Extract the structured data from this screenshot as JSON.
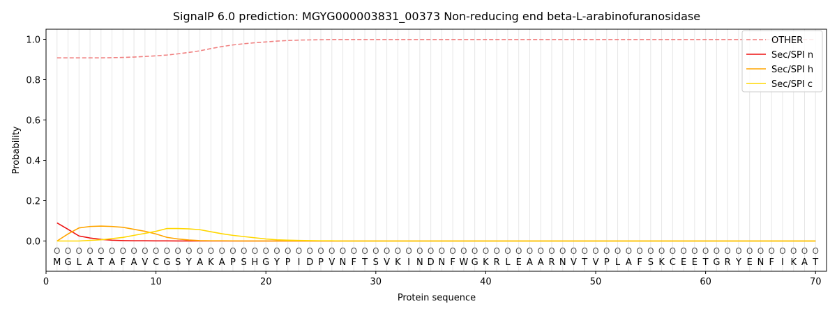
{
  "chart_data": {
    "type": "line",
    "title": "SignalP 6.0 prediction: MGYG000003831_00373 Non-reducing end beta-L-arabinofuranosidase",
    "xlabel": "Protein sequence",
    "ylabel": "Probability",
    "xlim": [
      0,
      71
    ],
    "ylim": [
      -0.15,
      1.05
    ],
    "xticks": [
      0,
      10,
      20,
      30,
      40,
      50,
      60,
      70
    ],
    "yticks": [
      0.0,
      0.2,
      0.4,
      0.6,
      0.8,
      1.0
    ],
    "ytick_labels": [
      "0.0",
      "0.2",
      "0.4",
      "0.6",
      "0.8",
      "1.0"
    ],
    "grid": "vertical lines at each residue position",
    "legend_position": "top-right",
    "sequence": [
      "M",
      "G",
      "L",
      "A",
      "T",
      "A",
      "F",
      "A",
      "V",
      "C",
      "G",
      "S",
      "Y",
      "A",
      "K",
      "A",
      "P",
      "S",
      "H",
      "G",
      "Y",
      "P",
      "I",
      "D",
      "P",
      "V",
      "N",
      "F",
      "T",
      "S",
      "V",
      "K",
      "I",
      "N",
      "D",
      "N",
      "F",
      "W",
      "G",
      "K",
      "R",
      "L",
      "E",
      "A",
      "A",
      "R",
      "N",
      "V",
      "T",
      "V",
      "P",
      "L",
      "A",
      "F",
      "S",
      "K",
      "C",
      "E",
      "E",
      "T",
      "G",
      "R",
      "Y",
      "E",
      "N",
      "F",
      "I",
      "K",
      "A",
      "T"
    ],
    "residue_mark": "O",
    "x": [
      1,
      2,
      3,
      4,
      5,
      6,
      7,
      8,
      9,
      10,
      11,
      12,
      13,
      14,
      15,
      16,
      17,
      18,
      19,
      20,
      21,
      22,
      23,
      24,
      25,
      26,
      27,
      28,
      29,
      30,
      31,
      32,
      33,
      34,
      35,
      36,
      37,
      38,
      39,
      40,
      41,
      42,
      43,
      44,
      45,
      46,
      47,
      48,
      49,
      50,
      51,
      52,
      53,
      54,
      55,
      56,
      57,
      58,
      59,
      60,
      61,
      62,
      63,
      64,
      65,
      66,
      67,
      68,
      69,
      70
    ],
    "series": [
      {
        "name": "OTHER",
        "color": "#f08080",
        "dash": "dashed",
        "values": [
          0.908,
          0.908,
          0.908,
          0.908,
          0.908,
          0.909,
          0.91,
          0.912,
          0.915,
          0.918,
          0.922,
          0.928,
          0.935,
          0.943,
          0.954,
          0.964,
          0.972,
          0.978,
          0.983,
          0.987,
          0.991,
          0.994,
          0.996,
          0.997,
          0.998,
          0.999,
          0.999,
          0.999,
          0.999,
          0.999,
          0.999,
          0.999,
          0.999,
          0.999,
          0.999,
          0.999,
          0.999,
          0.999,
          0.999,
          0.999,
          0.999,
          0.999,
          0.999,
          0.999,
          0.999,
          0.999,
          0.999,
          0.999,
          0.999,
          0.999,
          0.999,
          0.999,
          0.999,
          0.999,
          0.999,
          0.999,
          0.999,
          0.999,
          0.999,
          0.999,
          0.999,
          0.999,
          0.999,
          0.999,
          0.999,
          0.999,
          0.999,
          0.999,
          0.999,
          0.999
        ]
      },
      {
        "name": "Sec/SPI n",
        "color": "#ee1111",
        "dash": "solid",
        "values": [
          0.09,
          0.058,
          0.025,
          0.015,
          0.008,
          0.004,
          0.002,
          0.001,
          0.001,
          0.0005,
          0.0005,
          0.0003,
          0.0003,
          0.0002,
          0.0002,
          0.0001,
          0,
          0,
          0,
          0,
          0,
          0,
          0,
          0,
          0,
          0,
          0,
          0,
          0,
          0,
          0,
          0,
          0,
          0,
          0,
          0,
          0,
          0,
          0,
          0,
          0,
          0,
          0,
          0,
          0,
          0,
          0,
          0,
          0,
          0,
          0,
          0,
          0,
          0,
          0,
          0,
          0,
          0,
          0,
          0,
          0,
          0,
          0,
          0,
          0,
          0,
          0,
          0,
          0,
          0
        ]
      },
      {
        "name": "Sec/SPI h",
        "color": "#ffa500",
        "dash": "solid",
        "values": [
          0.0,
          0.035,
          0.065,
          0.072,
          0.074,
          0.072,
          0.068,
          0.058,
          0.048,
          0.035,
          0.018,
          0.01,
          0.005,
          0.002,
          0.001,
          0.001,
          0.0005,
          0.0003,
          0.0002,
          0.0001,
          0,
          0,
          0,
          0,
          0,
          0,
          0,
          0,
          0,
          0,
          0,
          0,
          0,
          0,
          0,
          0,
          0,
          0,
          0,
          0,
          0,
          0,
          0,
          0,
          0,
          0,
          0,
          0,
          0,
          0,
          0,
          0,
          0,
          0,
          0,
          0,
          0,
          0,
          0,
          0,
          0,
          0,
          0,
          0,
          0,
          0,
          0,
          0,
          0,
          0
        ]
      },
      {
        "name": "Sec/SPI c",
        "color": "#ffd700",
        "dash": "solid",
        "values": [
          0.0,
          0.0,
          0.0,
          0.003,
          0.006,
          0.012,
          0.018,
          0.028,
          0.038,
          0.048,
          0.062,
          0.062,
          0.06,
          0.056,
          0.046,
          0.036,
          0.028,
          0.022,
          0.016,
          0.01,
          0.006,
          0.004,
          0.003,
          0.002,
          0.001,
          0.001,
          0,
          0,
          0,
          0,
          0,
          0,
          0,
          0,
          0,
          0,
          0,
          0,
          0,
          0,
          0,
          0,
          0,
          0,
          0,
          0,
          0,
          0,
          0,
          0,
          0,
          0,
          0,
          0,
          0,
          0,
          0,
          0,
          0,
          0,
          0,
          0,
          0,
          0,
          0,
          0,
          0,
          0,
          0,
          0
        ]
      }
    ]
  }
}
